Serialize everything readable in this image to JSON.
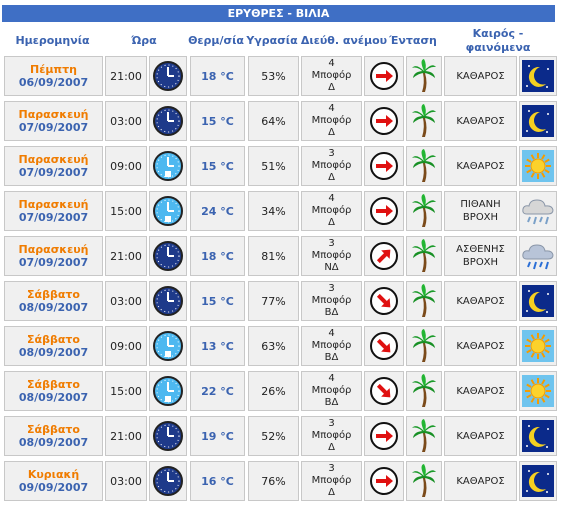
{
  "title": "ΕΡΥΘΡΕΣ - ΒΙΛΙΑ",
  "headers": {
    "date": "Ημερομηνία",
    "time": "Ώρα",
    "temp": "Θερμ/σία",
    "humidity": "Υγρασία",
    "wind_dir": "Διεύθ. ανέμου",
    "intensity": "Ένταση",
    "weather": "Καιρός - φαινόμενα"
  },
  "rows": [
    {
      "day": "Πέμπτη",
      "date": "06/09/2007",
      "time": "21:00",
      "clock": "night",
      "temp": "18 °C",
      "humidity": "53%",
      "wind_force": "4",
      "wind_unit": "Μποφόρ",
      "wind_dir": "Δ",
      "arrow": "right",
      "cond1": "ΚΑΘΑΡΟΣ",
      "cond2": "",
      "wicon": "moon"
    },
    {
      "day": "Παρασκευή",
      "date": "07/09/2007",
      "time": "03:00",
      "clock": "night",
      "temp": "15 °C",
      "humidity": "64%",
      "wind_force": "4",
      "wind_unit": "Μποφόρ",
      "wind_dir": "Δ",
      "arrow": "right",
      "cond1": "ΚΑΘΑΡΟΣ",
      "cond2": "",
      "wicon": "moon"
    },
    {
      "day": "Παρασκευή",
      "date": "07/09/2007",
      "time": "09:00",
      "clock": "day",
      "temp": "15 °C",
      "humidity": "51%",
      "wind_force": "3",
      "wind_unit": "Μποφόρ",
      "wind_dir": "Δ",
      "arrow": "right",
      "cond1": "ΚΑΘΑΡΟΣ",
      "cond2": "",
      "wicon": "sun"
    },
    {
      "day": "Παρασκευή",
      "date": "07/09/2007",
      "time": "15:00",
      "clock": "day",
      "temp": "24 °C",
      "humidity": "34%",
      "wind_force": "4",
      "wind_unit": "Μποφόρ",
      "wind_dir": "Δ",
      "arrow": "right",
      "cond1": "ΠΙΘΑΝΗ",
      "cond2": "ΒΡΟΧΗ",
      "wicon": "cloud-rain-light"
    },
    {
      "day": "Παρασκευή",
      "date": "07/09/2007",
      "time": "21:00",
      "clock": "night",
      "temp": "18 °C",
      "humidity": "81%",
      "wind_force": "3",
      "wind_unit": "Μποφόρ",
      "wind_dir": "ΝΔ",
      "arrow": "up-right",
      "cond1": "ΑΣΘΕΝΗΣ",
      "cond2": "ΒΡΟΧΗ",
      "wicon": "cloud-rain"
    },
    {
      "day": "Σάββατο",
      "date": "08/09/2007",
      "time": "03:00",
      "clock": "night",
      "temp": "15 °C",
      "humidity": "77%",
      "wind_force": "3",
      "wind_unit": "Μποφόρ",
      "wind_dir": "ΒΔ",
      "arrow": "down-right",
      "cond1": "ΚΑΘΑΡΟΣ",
      "cond2": "",
      "wicon": "moon"
    },
    {
      "day": "Σάββατο",
      "date": "08/09/2007",
      "time": "09:00",
      "clock": "day",
      "temp": "13 °C",
      "humidity": "63%",
      "wind_force": "4",
      "wind_unit": "Μποφόρ",
      "wind_dir": "ΒΔ",
      "arrow": "down-right",
      "cond1": "ΚΑΘΑΡΟΣ",
      "cond2": "",
      "wicon": "sun"
    },
    {
      "day": "Σάββατο",
      "date": "08/09/2007",
      "time": "15:00",
      "clock": "day",
      "temp": "22 °C",
      "humidity": "26%",
      "wind_force": "4",
      "wind_unit": "Μποφόρ",
      "wind_dir": "ΒΔ",
      "arrow": "down-right",
      "cond1": "ΚΑΘΑΡΟΣ",
      "cond2": "",
      "wicon": "sun"
    },
    {
      "day": "Σάββατο",
      "date": "08/09/2007",
      "time": "21:00",
      "clock": "night",
      "temp": "19 °C",
      "humidity": "52%",
      "wind_force": "3",
      "wind_unit": "Μποφόρ",
      "wind_dir": "Δ",
      "arrow": "right",
      "cond1": "ΚΑΘΑΡΟΣ",
      "cond2": "",
      "wicon": "moon"
    },
    {
      "day": "Κυριακή",
      "date": "09/09/2007",
      "time": "03:00",
      "clock": "night",
      "temp": "16 °C",
      "humidity": "76%",
      "wind_force": "3",
      "wind_unit": "Μποφόρ",
      "wind_dir": "Δ",
      "arrow": "right",
      "cond1": "ΚΑΘΑΡΟΣ",
      "cond2": "",
      "wicon": "moon"
    }
  ],
  "colors": {
    "title_bg": "#3f6fc5",
    "header_text": "#3b63b0",
    "day_text": "#f07c00",
    "cell_bg": "#f0f0f0",
    "night_icon_bg": "#1e3a8a",
    "day_icon_bg": "#4db8f0"
  }
}
